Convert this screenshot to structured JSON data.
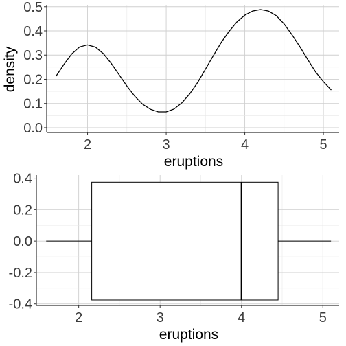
{
  "chart_data": [
    {
      "type": "line",
      "xlabel": "eruptions",
      "ylabel": "density",
      "xlim": [
        1.48,
        5.2
      ],
      "ylim": [
        -0.02,
        0.505
      ],
      "x_ticks": [
        "2",
        "3",
        "4",
        "5"
      ],
      "x_tick_values": [
        2,
        3,
        4,
        5
      ],
      "y_ticks": [
        "0.0",
        "0.1",
        "0.2",
        "0.3",
        "0.4",
        "0.5"
      ],
      "y_tick_values": [
        0.0,
        0.1,
        0.2,
        0.3,
        0.4,
        0.5
      ],
      "grid": true,
      "series": [
        {
          "color": "#000000",
          "x": [
            1.6,
            1.7,
            1.8,
            1.9,
            2.0,
            2.1,
            2.2,
            2.3,
            2.4,
            2.5,
            2.6,
            2.7,
            2.8,
            2.9,
            3.0,
            3.1,
            3.2,
            3.3,
            3.4,
            3.5,
            3.6,
            3.7,
            3.8,
            3.9,
            4.0,
            4.1,
            4.2,
            4.3,
            4.4,
            4.5,
            4.6,
            4.7,
            4.8,
            4.9,
            5.0,
            5.1
          ],
          "y": [
            0.213,
            0.262,
            0.305,
            0.334,
            0.342,
            0.333,
            0.306,
            0.266,
            0.219,
            0.172,
            0.13,
            0.097,
            0.076,
            0.065,
            0.065,
            0.077,
            0.103,
            0.14,
            0.187,
            0.242,
            0.298,
            0.352,
            0.398,
            0.437,
            0.465,
            0.482,
            0.488,
            0.482,
            0.463,
            0.429,
            0.384,
            0.335,
            0.282,
            0.231,
            0.19,
            0.156
          ]
        }
      ]
    },
    {
      "type": "box",
      "xlabel": "eruptions",
      "xlim": [
        1.48,
        5.2
      ],
      "ylim": [
        -0.41,
        0.42
      ],
      "x_ticks": [
        "2",
        "3",
        "4",
        "5"
      ],
      "x_tick_values": [
        2,
        3,
        4,
        5
      ],
      "y_ticks": [
        "-0.4",
        "-0.2",
        "0.0",
        "0.2",
        "0.4"
      ],
      "y_tick_values": [
        -0.4,
        -0.2,
        0.0,
        0.2,
        0.4
      ],
      "grid": true,
      "box": {
        "min": 1.6,
        "q1": 2.16,
        "median": 4.0,
        "q3": 4.45,
        "max": 5.1,
        "y_center": 0.0,
        "half_width": 0.375
      }
    }
  ]
}
